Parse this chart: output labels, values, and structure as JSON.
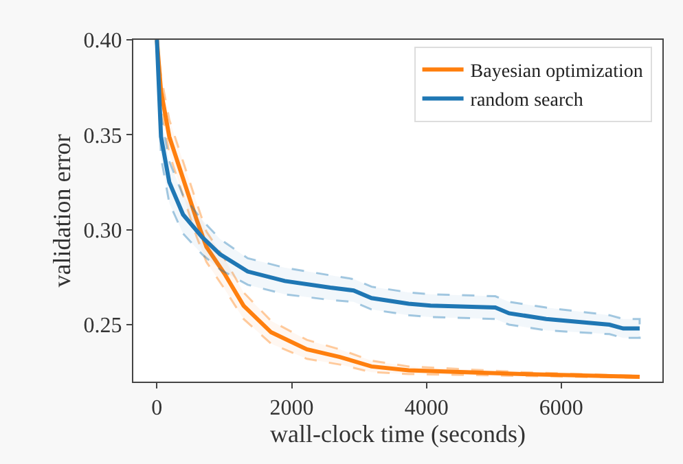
{
  "chart_data": {
    "type": "line",
    "xlabel": "wall-clock time (seconds)",
    "ylabel": "validation error",
    "xlim": [
      -350,
      7500
    ],
    "xticks": [
      0,
      2000,
      4000,
      6000
    ],
    "ylim": [
      0.22,
      0.4
    ],
    "yticks": [
      {
        "value": 0.25,
        "label": "0.25"
      },
      {
        "value": 0.3,
        "label": "0.30"
      },
      {
        "value": 0.35,
        "label": "0.35"
      },
      {
        "value": 0.4,
        "label": "0.40"
      }
    ],
    "legend": "top right",
    "marker": "none",
    "line_style": "solid",
    "series": [
      {
        "name": "Bayesian optimization",
        "color": "#ff7f0e",
        "x": [
          0,
          61,
          184,
          388,
          592,
          735,
          1000,
          1286,
          1694,
          2225,
          2714,
          3184,
          3735,
          5429,
          7163
        ],
        "values": [
          0.4,
          0.373,
          0.349,
          0.327,
          0.305,
          0.291,
          0.277,
          0.26,
          0.246,
          0.237,
          0.233,
          0.228,
          0.226,
          0.224,
          0.2225
        ],
        "lower": [
          0.4,
          0.365,
          0.34,
          0.318,
          0.296,
          0.283,
          0.269,
          0.253,
          0.24,
          0.232,
          0.229,
          0.225,
          0.224,
          0.223,
          0.222
        ],
        "upper": [
          0.4,
          0.381,
          0.358,
          0.336,
          0.314,
          0.299,
          0.285,
          0.267,
          0.252,
          0.242,
          0.237,
          0.231,
          0.228,
          0.225,
          0.223
        ]
      },
      {
        "name": "random search",
        "color": "#1f77b4",
        "x": [
          0,
          61,
          184,
          388,
          673,
          939,
          1347,
          1898,
          2572,
          2919,
          3184,
          3735,
          4061,
          5021,
          5225,
          5776,
          6715,
          6919,
          7163
        ],
        "values": [
          0.4,
          0.349,
          0.325,
          0.308,
          0.296,
          0.287,
          0.278,
          0.273,
          0.2695,
          0.268,
          0.264,
          0.261,
          0.26,
          0.259,
          0.256,
          0.253,
          0.25,
          0.248,
          0.248
        ],
        "lower": [
          0.4,
          0.338,
          0.314,
          0.298,
          0.287,
          0.279,
          0.271,
          0.266,
          0.263,
          0.262,
          0.258,
          0.255,
          0.254,
          0.253,
          0.25,
          0.247,
          0.245,
          0.243,
          0.243
        ],
        "upper": [
          0.4,
          0.36,
          0.336,
          0.318,
          0.305,
          0.295,
          0.285,
          0.28,
          0.276,
          0.274,
          0.27,
          0.267,
          0.266,
          0.265,
          0.262,
          0.259,
          0.255,
          0.253,
          0.253
        ]
      }
    ]
  }
}
